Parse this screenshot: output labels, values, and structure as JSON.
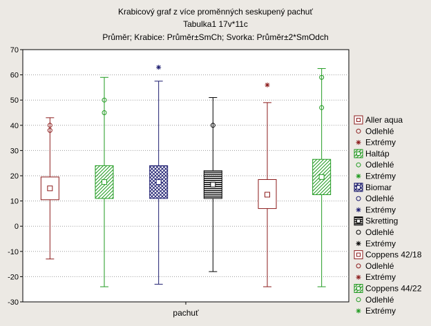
{
  "chart_data": {
    "type": "box",
    "title": "Krabicový graf z více proměnných seskupený pachuť",
    "subtitle": "Tabulka1 17v*11c",
    "description": "Průměr; Krabice: Průměr±SmCh; Svorka: Průměr±2*SmOdch",
    "xlabel": "pachuť",
    "ylabel": "",
    "ylim": [
      -30,
      70
    ],
    "yticks": [
      -30,
      -20,
      -10,
      0,
      10,
      20,
      30,
      40,
      50,
      60,
      70
    ],
    "grid": true,
    "legend_position": "right",
    "series": [
      {
        "name": "Aller aqua",
        "color": "#8b1a1a",
        "fill": "none",
        "mean": 15,
        "box": [
          10.5,
          19.5
        ],
        "whisker": [
          -13,
          43
        ],
        "outliers": [
          38,
          40
        ],
        "extremes": []
      },
      {
        "name": "Haltáp",
        "color": "#1e9a1e",
        "fill": "hatch",
        "mean": 17.5,
        "box": [
          11,
          24
        ],
        "whisker": [
          -24,
          59
        ],
        "outliers": [
          45,
          50
        ],
        "extremes": []
      },
      {
        "name": "Biomar",
        "color": "#1a1a6e",
        "fill": "crosshatch",
        "mean": 17.5,
        "box": [
          11,
          24
        ],
        "whisker": [
          -23,
          57.5
        ],
        "outliers": [],
        "extremes": [
          63
        ]
      },
      {
        "name": "Skretting",
        "color": "#000000",
        "fill": "hlines",
        "mean": 16.5,
        "box": [
          11,
          22
        ],
        "whisker": [
          -18,
          51
        ],
        "outliers": [
          40
        ],
        "extremes": []
      },
      {
        "name": "Coppens 42/18",
        "color": "#8b1a1a",
        "fill": "none",
        "mean": 12.5,
        "box": [
          7,
          18.5
        ],
        "whisker": [
          -24,
          49
        ],
        "outliers": [],
        "extremes": [
          56
        ]
      },
      {
        "name": "Coppens 44/22",
        "color": "#1e9a1e",
        "fill": "hatch",
        "mean": 19.5,
        "box": [
          12.5,
          26.5
        ],
        "whisker": [
          -24,
          62.5
        ],
        "outliers": [
          47,
          59
        ],
        "extremes": []
      }
    ],
    "legend_sub_outlier": "Odlehlé",
    "legend_sub_extreme": "Extrémy"
  }
}
